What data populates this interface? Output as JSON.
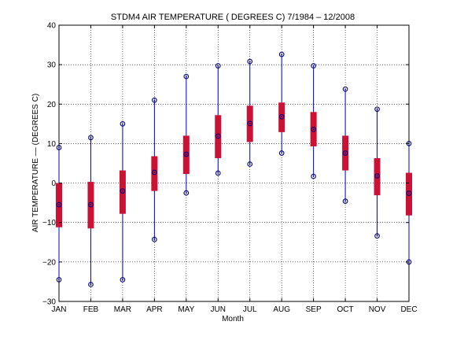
{
  "chart_data": {
    "type": "box",
    "title": "STDM4  AIR TEMPERATURE ( DEGREES C) 7/1984 – 12/2008",
    "xlabel": "Month",
    "ylabel": "AIR TEMPERATURE –– (DEGREES C)",
    "ylim": [
      -30,
      40
    ],
    "yticks": [
      -30,
      -20,
      -10,
      0,
      10,
      20,
      30,
      40
    ],
    "grid": true,
    "categories": [
      "JAN",
      "FEB",
      "MAR",
      "APR",
      "MAY",
      "JUN",
      "JUL",
      "AUG",
      "SEP",
      "OCT",
      "NOV",
      "DEC"
    ],
    "series": [
      {
        "stat": "max",
        "values": [
          9,
          11.5,
          15,
          21,
          27,
          29.7,
          30.8,
          32.6,
          29.7,
          23.8,
          18.7,
          10
        ]
      },
      {
        "stat": "q3",
        "values": [
          0,
          0.3,
          3.2,
          6.8,
          12,
          17.2,
          19.6,
          20.4,
          18,
          12,
          6.3,
          2.6
        ]
      },
      {
        "stat": "median",
        "values": [
          -5.5,
          -5.5,
          -2,
          2.7,
          7.3,
          11.9,
          15.1,
          16.8,
          13.6,
          7.6,
          1.8,
          -2.6
        ]
      },
      {
        "stat": "q1",
        "values": [
          -11.2,
          -11.5,
          -7.8,
          -2,
          2.3,
          6.3,
          10.4,
          12.9,
          9.3,
          3.2,
          -3.1,
          -8.2
        ]
      },
      {
        "stat": "min",
        "values": [
          -24.5,
          -25.7,
          -24.5,
          -14.3,
          -2.5,
          2.5,
          4.8,
          7.6,
          1.7,
          -4.6,
          -13.4,
          -20
        ]
      }
    ],
    "colors": {
      "box": "#cc1234",
      "whisker": "#0000cc",
      "marker": "#000080",
      "grid": "#000000",
      "axis": "#000000"
    }
  }
}
